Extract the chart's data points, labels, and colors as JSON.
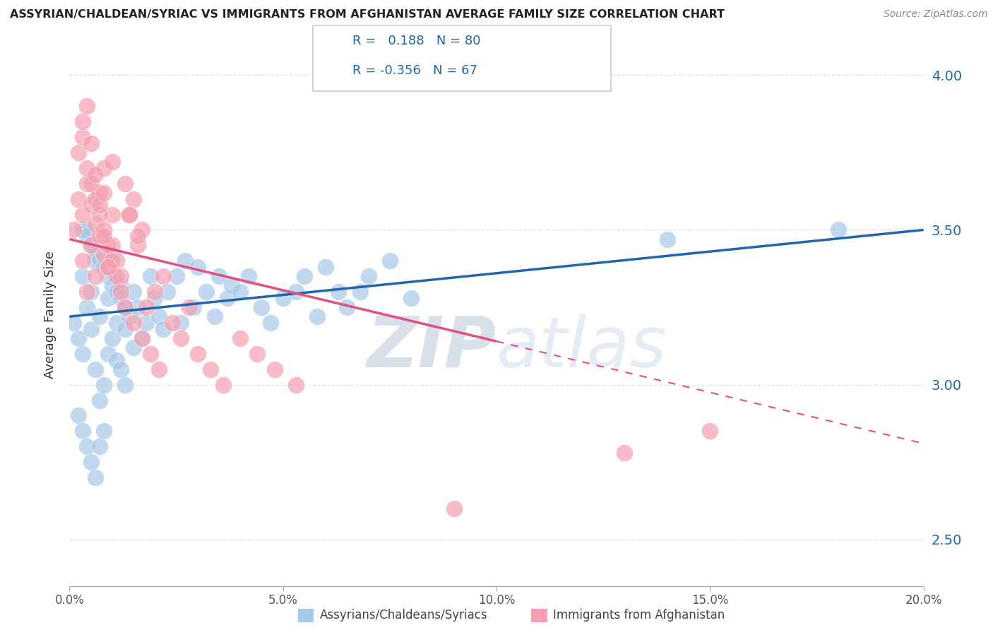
{
  "title": "ASSYRIAN/CHALDEAN/SYRIAC VS IMMIGRANTS FROM AFGHANISTAN AVERAGE FAMILY SIZE CORRELATION CHART",
  "source": "Source: ZipAtlas.com",
  "ylabel": "Average Family Size",
  "xmin": 0.0,
  "xmax": 0.2,
  "ymin": 2.35,
  "ymax": 4.1,
  "yticks": [
    2.5,
    3.0,
    3.5,
    4.0
  ],
  "r_blue": 0.188,
  "n_blue": 80,
  "r_pink": -0.356,
  "n_pink": 67,
  "blue_color": "#a8c8e8",
  "pink_color": "#f4a0b0",
  "blue_line_color": "#2166ac",
  "pink_line_color": "#e05080",
  "watermark_color": "#d0ddf0",
  "background_color": "#ffffff",
  "blue_scatter_x": [
    0.001,
    0.002,
    0.003,
    0.003,
    0.004,
    0.004,
    0.005,
    0.005,
    0.006,
    0.006,
    0.007,
    0.007,
    0.008,
    0.008,
    0.009,
    0.009,
    0.01,
    0.01,
    0.011,
    0.011,
    0.012,
    0.012,
    0.013,
    0.013,
    0.014,
    0.015,
    0.015,
    0.016,
    0.017,
    0.018,
    0.019,
    0.02,
    0.021,
    0.022,
    0.023,
    0.025,
    0.026,
    0.027,
    0.029,
    0.03,
    0.032,
    0.034,
    0.035,
    0.037,
    0.038,
    0.04,
    0.042,
    0.045,
    0.047,
    0.05,
    0.053,
    0.055,
    0.058,
    0.06,
    0.063,
    0.065,
    0.068,
    0.07,
    0.075,
    0.08,
    0.002,
    0.003,
    0.004,
    0.005,
    0.006,
    0.007,
    0.008,
    0.003,
    0.004,
    0.005,
    0.006,
    0.007,
    0.008,
    0.009,
    0.01,
    0.011,
    0.012,
    0.013,
    0.14,
    0.18
  ],
  "blue_scatter_y": [
    3.2,
    3.15,
    3.1,
    3.35,
    3.25,
    3.5,
    3.3,
    3.18,
    3.05,
    3.4,
    2.95,
    3.22,
    3.0,
    3.38,
    3.1,
    3.28,
    3.15,
    3.42,
    3.2,
    3.08,
    3.05,
    3.32,
    3.0,
    3.18,
    3.22,
    3.3,
    3.12,
    3.25,
    3.15,
    3.2,
    3.35,
    3.28,
    3.22,
    3.18,
    3.3,
    3.35,
    3.2,
    3.4,
    3.25,
    3.38,
    3.3,
    3.22,
    3.35,
    3.28,
    3.32,
    3.3,
    3.35,
    3.25,
    3.2,
    3.28,
    3.3,
    3.35,
    3.22,
    3.38,
    3.3,
    3.25,
    3.3,
    3.35,
    3.4,
    3.28,
    2.9,
    2.85,
    2.8,
    2.75,
    2.7,
    2.8,
    2.85,
    3.5,
    3.48,
    3.45,
    3.42,
    3.4,
    3.38,
    3.35,
    3.32,
    3.3,
    3.28,
    3.25,
    3.47,
    3.5
  ],
  "pink_scatter_x": [
    0.001,
    0.002,
    0.003,
    0.003,
    0.004,
    0.004,
    0.005,
    0.005,
    0.006,
    0.006,
    0.007,
    0.007,
    0.008,
    0.008,
    0.009,
    0.01,
    0.01,
    0.011,
    0.012,
    0.013,
    0.014,
    0.015,
    0.016,
    0.017,
    0.018,
    0.02,
    0.022,
    0.024,
    0.026,
    0.028,
    0.03,
    0.033,
    0.036,
    0.04,
    0.044,
    0.048,
    0.053,
    0.002,
    0.003,
    0.004,
    0.005,
    0.006,
    0.007,
    0.008,
    0.009,
    0.01,
    0.011,
    0.012,
    0.013,
    0.014,
    0.015,
    0.016,
    0.017,
    0.019,
    0.021,
    0.003,
    0.004,
    0.005,
    0.006,
    0.007,
    0.008,
    0.008,
    0.009,
    0.01,
    0.09,
    0.13,
    0.15
  ],
  "pink_scatter_y": [
    3.5,
    3.6,
    3.55,
    3.4,
    3.65,
    3.3,
    3.58,
    3.45,
    3.52,
    3.35,
    3.48,
    3.62,
    3.42,
    3.7,
    3.38,
    3.45,
    3.55,
    3.4,
    3.35,
    3.65,
    3.55,
    3.6,
    3.45,
    3.5,
    3.25,
    3.3,
    3.35,
    3.2,
    3.15,
    3.25,
    3.1,
    3.05,
    3.0,
    3.15,
    3.1,
    3.05,
    3.0,
    3.75,
    3.8,
    3.7,
    3.65,
    3.6,
    3.55,
    3.5,
    3.45,
    3.4,
    3.35,
    3.3,
    3.25,
    3.55,
    3.2,
    3.48,
    3.15,
    3.1,
    3.05,
    3.85,
    3.9,
    3.78,
    3.68,
    3.58,
    3.48,
    3.62,
    3.38,
    3.72,
    2.6,
    2.78,
    2.85
  ],
  "blue_line_x0": 0.0,
  "blue_line_y0": 3.22,
  "blue_line_x1": 0.2,
  "blue_line_y1": 3.5,
  "pink_line_x0": 0.0,
  "pink_line_y0": 3.47,
  "pink_line_x1_solid": 0.1,
  "pink_line_y1_solid": 3.14,
  "pink_line_x1_dash": 0.2,
  "pink_line_y1_dash": 2.81,
  "grid_color": "#e0e0e0",
  "legend_label_blue": "Assyrians/Chaldeans/Syriacs",
  "legend_label_pink": "Immigrants from Afghanistan"
}
